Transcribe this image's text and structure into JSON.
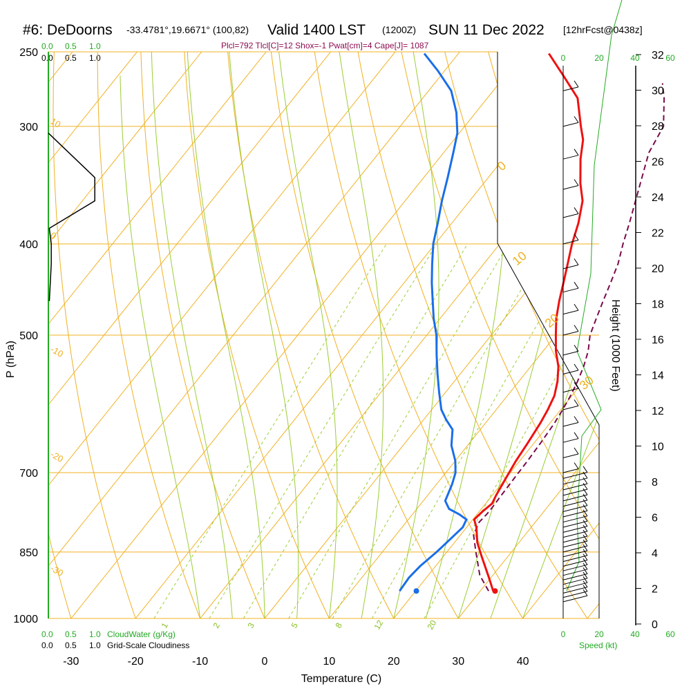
{
  "header": {
    "station": "#6: DeDoorns",
    "coords": "-33.4781°,19.6671° (100,82)",
    "valid": "Valid 1400 LST",
    "utc": "(1200Z)",
    "date": "SUN 11 Dec 2022",
    "forecast": "[12hrFcst@0438z]",
    "params": "Plcl=792 Tlcl[C]=12 Shox=-1 Pwat[cm]=4 Cape[J]= 1087"
  },
  "labels": {
    "p_axis": "P (hPa)",
    "t_axis": "Temperature (C)",
    "h_axis": "Height (1000 Feet)",
    "cloudwater": "CloudWater (g/Kg)",
    "cloudiness": "Grid-Scale Cloudiness",
    "speed": "Speed (kt)",
    "scale_a": "0.0",
    "scale_b": "0.5",
    "scale_c": "1.0"
  },
  "colors": {
    "temperature": "#ee1111",
    "dewpoint": "#1a6ee8",
    "parcel": "#7a0a4a",
    "isobar_isotherm": "#f0b020",
    "adiabat": "#9acd32",
    "height_scale": "#22aa22"
  },
  "chart_data": {
    "type": "line",
    "subtype": "skew-T log-P sounding",
    "x_axis": {
      "label": "Temperature (C)",
      "ticks": [
        -30,
        -20,
        -10,
        0,
        10,
        20,
        30,
        40
      ],
      "range": [
        -34,
        46
      ]
    },
    "y_axis": {
      "label": "P (hPa)",
      "ticks": [
        250,
        300,
        400,
        500,
        700,
        850,
        1000
      ],
      "range": [
        1000,
        250
      ],
      "scale": "log"
    },
    "height_axis": {
      "label": "Height (1000 Feet)",
      "ticks": [
        0,
        2,
        4,
        6,
        8,
        10,
        12,
        14,
        16,
        18,
        20,
        22,
        24,
        26,
        28,
        30,
        32
      ]
    },
    "isotherm_labels": [
      "10",
      "0",
      "-10",
      "-20",
      "-30",
      "0",
      "10",
      "20",
      "30"
    ],
    "mixing_ratio_labels": [
      "1",
      "2",
      "3",
      "5",
      "8",
      "12",
      "20"
    ],
    "cloud_scale_ticks": [
      "0.0",
      "0.5",
      "1.0"
    ],
    "speed_ticks": [
      "0",
      "20",
      "40",
      "60"
    ],
    "surface_temperature": 32.3,
    "surface_dewpoint": 20.1,
    "series": [
      {
        "name": "Temperature",
        "points": [
          [
            32,
            935
          ],
          [
            29.7,
            905
          ],
          [
            26,
            860
          ],
          [
            23.5,
            830
          ],
          [
            21.5,
            800
          ],
          [
            20.2,
            785
          ],
          [
            20.5,
            770
          ],
          [
            21,
            755
          ],
          [
            20.6,
            740
          ],
          [
            20,
            710
          ],
          [
            19.4,
            680
          ],
          [
            19,
            650
          ],
          [
            18.5,
            620
          ],
          [
            18,
            600
          ],
          [
            17.3,
            580
          ],
          [
            16,
            560
          ],
          [
            14.3,
            540
          ],
          [
            12,
            520
          ],
          [
            10,
            500
          ],
          [
            8,
            480
          ],
          [
            6.3,
            460
          ],
          [
            4.7,
            440
          ],
          [
            3,
            420
          ],
          [
            1.2,
            400
          ],
          [
            -0.4,
            380
          ],
          [
            -2.5,
            360
          ],
          [
            -5,
            345
          ],
          [
            -8,
            325
          ],
          [
            -10,
            310
          ],
          [
            -12,
            300
          ],
          [
            -16,
            280
          ],
          [
            -21,
            265
          ],
          [
            -26,
            251
          ]
        ]
      },
      {
        "name": "Dewpoint",
        "points": [
          [
            17.5,
            935
          ],
          [
            17.3,
            905
          ],
          [
            17.6,
            880
          ],
          [
            18.4,
            850
          ],
          [
            19.4,
            800
          ],
          [
            19,
            785
          ],
          [
            17.2,
            775
          ],
          [
            15,
            765
          ],
          [
            13.4,
            750
          ],
          [
            12.4,
            720
          ],
          [
            11.5,
            700
          ],
          [
            10,
            680
          ],
          [
            7.5,
            655
          ],
          [
            5.7,
            630
          ],
          [
            3.5,
            615
          ],
          [
            1.5,
            600
          ],
          [
            -1,
            575
          ],
          [
            -3.5,
            550
          ],
          [
            -6,
            525
          ],
          [
            -8.5,
            500
          ],
          [
            -11,
            480
          ],
          [
            -13.3,
            460
          ],
          [
            -15.7,
            440
          ],
          [
            -18,
            420
          ],
          [
            -20.3,
            400
          ],
          [
            -22.2,
            380
          ],
          [
            -24.3,
            360
          ],
          [
            -26.3,
            340
          ],
          [
            -28.5,
            320
          ],
          [
            -30.3,
            305
          ],
          [
            -33,
            290
          ],
          [
            -36.5,
            275
          ],
          [
            -41,
            262
          ],
          [
            -45.3,
            251
          ]
        ]
      },
      {
        "name": "Parcel",
        "points": [
          [
            31.3,
            935
          ],
          [
            28,
            900
          ],
          [
            24.5,
            850
          ],
          [
            22,
            815
          ],
          [
            21.3,
            790
          ],
          [
            21.5,
            775
          ],
          [
            21.5,
            760
          ],
          [
            21.4,
            740
          ],
          [
            21.3,
            710
          ],
          [
            21.2,
            680
          ],
          [
            21,
            650
          ],
          [
            20.7,
            620
          ],
          [
            20.3,
            600
          ],
          [
            19.8,
            580
          ],
          [
            19.1,
            560
          ],
          [
            18.2,
            540
          ],
          [
            17,
            520
          ],
          [
            15.3,
            500
          ],
          [
            14.2,
            480
          ],
          [
            13.1,
            460
          ],
          [
            12,
            440
          ],
          [
            10.8,
            420
          ],
          [
            9.1,
            400
          ],
          [
            7.5,
            380
          ],
          [
            5.7,
            360
          ],
          [
            3.8,
            340
          ],
          [
            1.8,
            320
          ],
          [
            0.8,
            300
          ],
          [
            -2.6,
            280
          ],
          [
            -4.7,
            270
          ]
        ]
      }
    ],
    "cloud_profile_fraction": [
      [
        0.0,
        305
      ],
      [
        0.48,
        340
      ],
      [
        0.48,
        360
      ],
      [
        0.01,
        385
      ],
      [
        0.03,
        400
      ],
      [
        0.03,
        420
      ],
      [
        0.01,
        460
      ]
    ],
    "height_curve": [
      [
        820,
        935
      ],
      [
        838,
        870
      ],
      [
        835,
        780
      ],
      [
        842,
        640
      ],
      [
        870,
        600
      ],
      [
        835,
        520
      ],
      [
        855,
        430
      ],
      [
        860,
        330
      ],
      [
        885,
        240
      ],
      [
        935,
        180
      ],
      [
        945,
        150
      ],
      [
        935,
        110
      ],
      [
        925,
        85
      ]
    ]
  }
}
